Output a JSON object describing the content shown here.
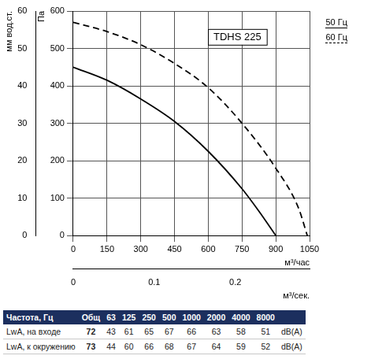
{
  "chart_data": {
    "type": "line",
    "title": "TDHS 225",
    "x_label": "м³/час",
    "x2_label": "м³/сек.",
    "y_label": "Па",
    "y2_label": "мм вод.ст.",
    "xlim": [
      0,
      1050
    ],
    "xticks": [
      0,
      150,
      300,
      450,
      600,
      750,
      900,
      1050
    ],
    "x2lim": [
      0,
      0.2917
    ],
    "x2ticks": [
      0,
      0.1,
      0.2
    ],
    "ylim": [
      0,
      600
    ],
    "yticks": [
      0,
      100,
      200,
      300,
      400,
      500,
      600
    ],
    "y2lim": [
      0,
      60
    ],
    "y2ticks": [
      0,
      10,
      20,
      30,
      40,
      50,
      60
    ],
    "grid": true,
    "legend": "top-right",
    "series": [
      {
        "name": "50 Гц",
        "color": "#000000",
        "line_style": "solid",
        "marker": "none",
        "x": [
          0,
          150,
          300,
          450,
          600,
          750,
          825,
          900
        ],
        "values": [
          450,
          415,
          365,
          305,
          225,
          125,
          65,
          0
        ]
      },
      {
        "name": "60 Гц",
        "color": "#000000",
        "line_style": "dashed",
        "marker": "none",
        "x": [
          0,
          150,
          300,
          450,
          600,
          750,
          900,
          1000,
          1040
        ],
        "values": [
          570,
          545,
          510,
          460,
          395,
          300,
          180,
          75,
          0
        ]
      }
    ]
  },
  "table": {
    "header": [
      "Частота, Гц",
      "Общ",
      "63",
      "125",
      "250",
      "500",
      "1000",
      "2000",
      "4000",
      "8000"
    ],
    "rows": [
      [
        "LwA, на входе",
        72,
        43,
        61,
        65,
        67,
        66,
        63,
        58,
        51,
        "dB(A)"
      ],
      [
        "LwA, к окружению",
        73,
        44,
        60,
        66,
        68,
        67,
        64,
        59,
        52,
        "dB(A)"
      ]
    ]
  }
}
